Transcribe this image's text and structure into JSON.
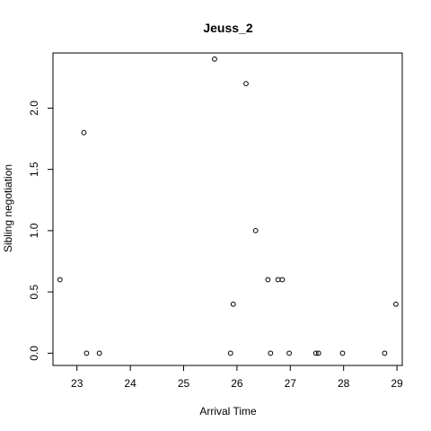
{
  "chart_data": {
    "type": "scatter",
    "title": "Jeuss_2",
    "xlabel": "Arrival Time",
    "ylabel": "Sibling negotiation",
    "xlim": [
      22.55,
      29.1
    ],
    "ylim": [
      -0.1,
      2.45
    ],
    "xticks": [
      23,
      24,
      25,
      26,
      27,
      28,
      29
    ],
    "yticks": [
      0.0,
      0.5,
      1.0,
      1.5,
      2.0
    ],
    "ytick_labels": [
      "0.0",
      "0.5",
      "1.0",
      "1.5",
      "2.0"
    ],
    "grid": false,
    "legend": "none",
    "points": [
      {
        "x": 22.68,
        "y": 0.6
      },
      {
        "x": 23.13,
        "y": 1.8
      },
      {
        "x": 23.18,
        "y": 0.0
      },
      {
        "x": 23.42,
        "y": 0.0
      },
      {
        "x": 25.58,
        "y": 2.4
      },
      {
        "x": 25.88,
        "y": 0.0
      },
      {
        "x": 25.93,
        "y": 0.4
      },
      {
        "x": 26.17,
        "y": 2.2
      },
      {
        "x": 26.35,
        "y": 1.0
      },
      {
        "x": 26.58,
        "y": 0.6
      },
      {
        "x": 26.63,
        "y": 0.0
      },
      {
        "x": 26.77,
        "y": 0.6
      },
      {
        "x": 26.85,
        "y": 0.6
      },
      {
        "x": 26.98,
        "y": 0.0
      },
      {
        "x": 27.48,
        "y": 0.0
      },
      {
        "x": 27.53,
        "y": 0.0
      },
      {
        "x": 27.98,
        "y": 0.0
      },
      {
        "x": 28.77,
        "y": 0.0
      },
      {
        "x": 28.98,
        "y": 0.4
      }
    ]
  }
}
